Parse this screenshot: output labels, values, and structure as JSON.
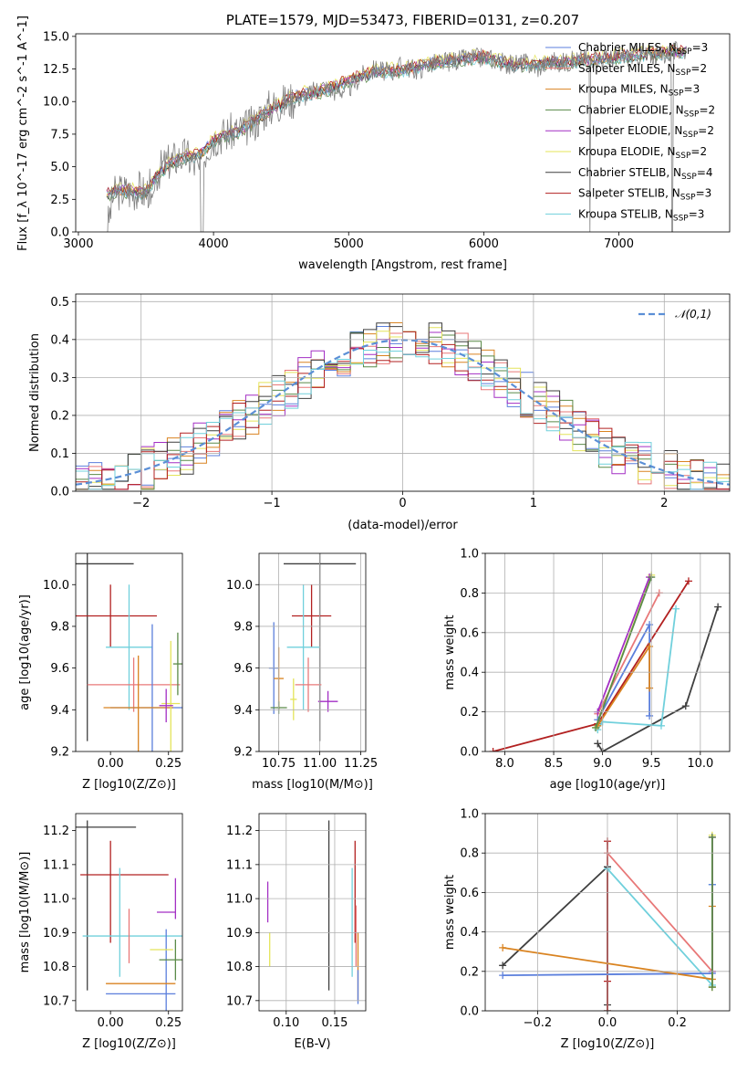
{
  "chart_data": [
    {
      "id": "spectrum",
      "type": "line",
      "title": "PLATE=1579, MJD=53473, FIBERID=0131, z=0.207",
      "xlabel": "wavelength [Angstrom, rest frame]",
      "ylabel": "Flux [f_λ 10^-17 erg cm^-2 s^-1 A^-1]",
      "xlim": [
        2980,
        7820
      ],
      "ylim": [
        0,
        15.2
      ],
      "xticks": [
        3000,
        4000,
        5000,
        6000,
        7000
      ],
      "yticks": [
        0.0,
        2.5,
        5.0,
        7.5,
        10.0,
        12.5,
        15.0
      ],
      "legend_position": "top-right",
      "grid": false,
      "observed_spectrum": {
        "color": "#808080",
        "x": [
          3210,
          3260,
          3300,
          3350,
          3400,
          3450,
          3500,
          3560,
          3620,
          3700,
          3800,
          3900,
          3950,
          4000,
          4100,
          4200,
          4300,
          4400,
          4500,
          4600,
          4700,
          4800,
          4900,
          5000,
          5100,
          5200,
          5300,
          5400,
          5500,
          5600,
          5700,
          5800,
          5900,
          6000,
          6100,
          6200,
          6300,
          6400,
          6500,
          6600,
          6700,
          6800,
          6900,
          7000,
          7100,
          7200,
          7300,
          7400,
          7500
        ],
        "y": [
          0.0,
          2.9,
          3.1,
          3.2,
          3.0,
          3.3,
          2.9,
          4.2,
          5.0,
          5.6,
          5.9,
          4.6,
          6.5,
          7.2,
          7.6,
          7.8,
          8.3,
          9.5,
          9.9,
          10.2,
          10.5,
          11.2,
          10.8,
          11.0,
          12.0,
          12.5,
          12.2,
          12.8,
          12.4,
          12.9,
          13.0,
          13.2,
          13.3,
          13.4,
          13.2,
          12.8,
          13.0,
          12.6,
          13.1,
          13.0,
          13.2,
          13.4,
          13.3,
          13.4,
          13.5,
          13.6,
          13.5,
          13.8,
          14.0
        ]
      },
      "series": [
        {
          "name": "Chabrier MILES, N_SSP=3",
          "color": "#5b7fdc",
          "offset": 0.1
        },
        {
          "name": "Salpeter MILES, N_SSP=2",
          "color": "#e87878",
          "offset": -0.1
        },
        {
          "name": "Kroupa MILES, N_SSP=3",
          "color": "#d98320",
          "offset": 0.0
        },
        {
          "name": "Chabrier ELODIE, N_SSP=2",
          "color": "#5a8a48",
          "offset": -0.2
        },
        {
          "name": "Salpeter ELODIE, N_SSP=2",
          "color": "#a32fc4",
          "offset": 0.05
        },
        {
          "name": "Kroupa ELODIE, N_SSP=2",
          "color": "#e4e45a",
          "offset": 0.3
        },
        {
          "name": "Chabrier STELIB, N_SSP=4",
          "color": "#3f3f3f",
          "offset": -0.05
        },
        {
          "name": "Salpeter STELIB, N_SSP=3",
          "color": "#b22020",
          "offset": 0.15
        },
        {
          "name": "Kroupa STELIB, N_SSP=3",
          "color": "#70d0dc",
          "offset": -0.15
        }
      ],
      "model_continuum": {
        "x": [
          3200,
          3300,
          3400,
          3500,
          3600,
          3700,
          3800,
          3900,
          4000,
          4200,
          4400,
          4600,
          4800,
          5000,
          5200,
          5400,
          5600,
          5800,
          6000,
          6200,
          6400,
          6600,
          6800,
          7000,
          7200,
          7400
        ],
        "y": [
          2.9,
          3.2,
          3.1,
          3.0,
          4.6,
          5.4,
          5.8,
          5.9,
          7.0,
          7.8,
          9.2,
          10.4,
          10.8,
          11.6,
          12.3,
          12.4,
          12.9,
          13.2,
          13.4,
          12.8,
          12.9,
          13.0,
          13.2,
          13.4,
          13.6,
          13.8
        ]
      }
    },
    {
      "id": "residuals",
      "type": "histogram",
      "xlabel": "(data-model)/error",
      "ylabel": "Normed distribution",
      "xlim": [
        -2.5,
        2.5
      ],
      "ylim": [
        0,
        0.52
      ],
      "xticks": [
        -2,
        -1,
        0,
        1,
        2
      ],
      "yticks": [
        0.0,
        0.1,
        0.2,
        0.3,
        0.4,
        0.5
      ],
      "xticklabels": [
        "−2",
        "−1",
        "0",
        "1",
        "2"
      ],
      "grid": true,
      "legend_label": "𝒩(0,1)",
      "legend_position": "top-right",
      "bin_width": 0.1
    },
    {
      "id": "age-vs-Z",
      "type": "errorbar",
      "xlabel": "Z [log10(Z/Z⊙)]",
      "ylabel": "age [log10(age/yr)]",
      "xlim": [
        -0.15,
        0.31
      ],
      "ylim": [
        9.2,
        10.15
      ],
      "xticks": [
        0.0,
        0.25
      ],
      "yticks": [
        9.2,
        9.4,
        9.6,
        9.8,
        10.0
      ],
      "grid": false,
      "points": [
        {
          "color": "#3f3f3f",
          "x": -0.1,
          "xerr": 0.2,
          "y": 10.1,
          "yerr": 0.85
        },
        {
          "color": "#b22020",
          "x": 0.0,
          "xerr": 0.2,
          "y": 9.85,
          "yerr": 0.15
        },
        {
          "color": "#70d0dc",
          "x": 0.08,
          "xerr": 0.1,
          "y": 9.7,
          "yerr": 0.3
        },
        {
          "color": "#e87878",
          "x": 0.1,
          "xerr": 0.2,
          "y": 9.52,
          "yerr": 0.13
        },
        {
          "color": "#5b7fdc",
          "x": 0.18,
          "xerr": 0.18,
          "y": 9.41,
          "yerr": 0.4
        },
        {
          "color": "#d98320",
          "x": 0.12,
          "xerr": 0.15,
          "y": 9.41,
          "yerr": 0.25
        },
        {
          "color": "#e4e45a",
          "x": 0.26,
          "xerr": 0.04,
          "y": 9.43,
          "yerr": 0.3
        },
        {
          "color": "#a32fc4",
          "x": 0.24,
          "xerr": 0.03,
          "y": 9.42,
          "yerr": 0.08
        },
        {
          "color": "#5a8a48",
          "x": 0.29,
          "xerr": 0.02,
          "y": 9.62,
          "yerr": 0.15
        }
      ]
    },
    {
      "id": "age-vs-mass",
      "type": "errorbar",
      "xlabel": "mass [log10(M/M⊙)]",
      "xlim": [
        10.63,
        11.28
      ],
      "ylim": [
        9.2,
        10.15
      ],
      "xticks": [
        10.75,
        11.0,
        11.25
      ],
      "yticks": [
        9.2,
        9.4,
        9.6,
        9.8,
        10.0
      ],
      "grid": true,
      "points": [
        {
          "color": "#3f3f3f",
          "x": 11.0,
          "xerr": 0.22,
          "y": 10.1,
          "yerr": 0.85
        },
        {
          "color": "#b22020",
          "x": 10.95,
          "xerr": 0.12,
          "y": 9.85,
          "yerr": 0.15
        },
        {
          "color": "#70d0dc",
          "x": 10.9,
          "xerr": 0.1,
          "y": 9.7,
          "yerr": 0.3
        },
        {
          "color": "#5b7fdc",
          "x": 10.72,
          "xerr": 0.03,
          "y": 9.6,
          "yerr": 0.22
        },
        {
          "color": "#d98320",
          "x": 10.75,
          "xerr": 0.03,
          "y": 9.55,
          "yerr": 0.15
        },
        {
          "color": "#e87878",
          "x": 10.93,
          "xerr": 0.08,
          "y": 9.52,
          "yerr": 0.13
        },
        {
          "color": "#a32fc4",
          "x": 11.05,
          "xerr": 0.06,
          "y": 9.44,
          "yerr": 0.05
        },
        {
          "color": "#e4e45a",
          "x": 10.84,
          "xerr": 0.02,
          "y": 9.45,
          "yerr": 0.1
        },
        {
          "color": "#5a8a48",
          "x": 10.75,
          "xerr": 0.05,
          "y": 9.41,
          "yerr": 0.03
        }
      ]
    },
    {
      "id": "massweight-vs-age",
      "type": "line",
      "xlabel": "age [log10(age/yr)]",
      "ylabel": "mass weight",
      "xlim": [
        7.8,
        10.3
      ],
      "ylim": [
        0.0,
        1.0
      ],
      "xticks": [
        8.0,
        8.5,
        9.0,
        9.5,
        10.0
      ],
      "yticks": [
        0.0,
        0.2,
        0.4,
        0.6,
        0.8,
        1.0
      ],
      "grid": true,
      "series": [
        {
          "color": "#3f3f3f",
          "x": [
            8.95,
            9.0,
            9.85,
            10.18
          ],
          "y": [
            0.04,
            0.0,
            0.23,
            0.73
          ]
        },
        {
          "color": "#b22020",
          "x": [
            7.88,
            8.95,
            9.88
          ],
          "y": [
            0.0,
            0.14,
            0.86
          ]
        },
        {
          "color": "#70d0dc",
          "x": [
            8.95,
            9.0,
            9.6,
            9.75
          ],
          "y": [
            0.11,
            0.15,
            0.13,
            0.72
          ]
        },
        {
          "color": "#e87878",
          "x": [
            8.95,
            9.58
          ],
          "y": [
            0.19,
            0.8
          ]
        },
        {
          "color": "#5b7fdc",
          "x": [
            8.95,
            9.48,
            9.48
          ],
          "y": [
            0.16,
            0.64,
            0.18
          ]
        },
        {
          "color": "#d98320",
          "x": [
            8.95,
            9.48,
            9.48
          ],
          "y": [
            0.13,
            0.53,
            0.32
          ]
        },
        {
          "color": "#e4e45a",
          "x": [
            8.93,
            9.5
          ],
          "y": [
            0.12,
            0.89
          ]
        },
        {
          "color": "#a32fc4",
          "x": [
            8.95,
            9.48
          ],
          "y": [
            0.2,
            0.88
          ]
        },
        {
          "color": "#5a8a48",
          "x": [
            8.93,
            9.5
          ],
          "y": [
            0.12,
            0.88
          ]
        }
      ]
    },
    {
      "id": "mass-vs-Z",
      "type": "errorbar",
      "xlabel": "Z [log10(Z/Z⊙)]",
      "ylabel": "mass [log10(M/M⊙)]",
      "xlim": [
        -0.15,
        0.31
      ],
      "ylim": [
        10.67,
        11.25
      ],
      "xticks": [
        0.0,
        0.25
      ],
      "yticks": [
        10.7,
        10.8,
        10.9,
        11.0,
        11.1,
        11.2
      ],
      "grid": false,
      "points": [
        {
          "color": "#3f3f3f",
          "x": -0.05,
          "xerr": 0.16,
          "y": 11.21,
          "yerr": 0.0
        },
        {
          "color": "#3f3f3f",
          "x": -0.1,
          "xerr": 0.0,
          "y": 10.98,
          "yerr": 0.25
        },
        {
          "color": "#b22020",
          "x": 0.0,
          "xerr": 0.0,
          "y": 11.02,
          "yerr": 0.15
        },
        {
          "color": "#b22020",
          "x": 0.06,
          "xerr": 0.19,
          "y": 11.07,
          "yerr": 0.0
        },
        {
          "color": "#70d0dc",
          "x": 0.1,
          "xerr": 0.22,
          "y": 10.89,
          "yerr": 0.0
        },
        {
          "color": "#70d0dc",
          "x": 0.04,
          "xerr": 0.0,
          "y": 10.93,
          "yerr": 0.16
        },
        {
          "color": "#e87878",
          "x": 0.08,
          "xerr": 0.0,
          "y": 10.89,
          "yerr": 0.08
        },
        {
          "color": "#5b7fdc",
          "x": 0.13,
          "xerr": 0.15,
          "y": 10.72,
          "yerr": 0.0
        },
        {
          "color": "#5b7fdc",
          "x": 0.24,
          "xerr": 0.0,
          "y": 10.78,
          "yerr": 0.13
        },
        {
          "color": "#d98320",
          "x": 0.13,
          "xerr": 0.15,
          "y": 10.75,
          "yerr": 0.0
        },
        {
          "color": "#e4e45a",
          "x": 0.22,
          "xerr": 0.05,
          "y": 10.85,
          "yerr": 0.0
        },
        {
          "color": "#a32fc4",
          "x": 0.24,
          "xerr": 0.04,
          "y": 10.96,
          "yerr": 0.0
        },
        {
          "color": "#a32fc4",
          "x": 0.28,
          "xerr": 0.0,
          "y": 11.0,
          "yerr": 0.06
        },
        {
          "color": "#5a8a48",
          "x": 0.28,
          "xerr": 0.0,
          "y": 10.82,
          "yerr": 0.06
        },
        {
          "color": "#5a8a48",
          "x": 0.26,
          "xerr": 0.05,
          "y": 10.82,
          "yerr": 0.0
        }
      ]
    },
    {
      "id": "mass-vs-EBV",
      "type": "errorbar",
      "xlabel": "E(B-V)",
      "xlim": [
        0.072,
        0.182
      ],
      "ylim": [
        10.67,
        11.25
      ],
      "xticks": [
        0.1,
        0.15
      ],
      "yticks": [
        10.7,
        10.8,
        10.9,
        11.0,
        11.1,
        11.2
      ],
      "grid": true,
      "points": [
        {
          "color": "#a32fc4",
          "x": 0.081,
          "xerr": 0,
          "y": 10.99,
          "yerr": 0.06
        },
        {
          "color": "#e4e45a",
          "x": 0.083,
          "xerr": 0,
          "y": 10.85,
          "yerr": 0.05
        },
        {
          "color": "#3f3f3f",
          "x": 0.144,
          "xerr": 0,
          "y": 10.98,
          "yerr": 0.25
        },
        {
          "color": "#70d0dc",
          "x": 0.168,
          "xerr": 0,
          "y": 10.93,
          "yerr": 0.16
        },
        {
          "color": "#b22020",
          "x": 0.171,
          "xerr": 0,
          "y": 11.02,
          "yerr": 0.15
        },
        {
          "color": "#e87878",
          "x": 0.172,
          "xerr": 0,
          "y": 10.89,
          "yerr": 0.09
        },
        {
          "color": "#d98320",
          "x": 0.174,
          "xerr": 0,
          "y": 10.8,
          "yerr": 0.1
        },
        {
          "color": "#5b7fdc",
          "x": 0.174,
          "xerr": 0,
          "y": 10.74,
          "yerr": 0.05
        }
      ]
    },
    {
      "id": "massweight-vs-Z",
      "type": "line",
      "xlabel": "Z [log10(Z/Z⊙)]",
      "ylabel": "mass weight",
      "xlim": [
        -0.35,
        0.35
      ],
      "ylim": [
        0.0,
        1.0
      ],
      "xticks": [
        -0.2,
        0.0,
        0.2
      ],
      "xticklabels": [
        "−0.2",
        "0.0",
        "0.2"
      ],
      "yticks": [
        0.0,
        0.2,
        0.4,
        0.6,
        0.8,
        1.0
      ],
      "grid": true,
      "series": [
        {
          "color": "#3f3f3f",
          "x": [
            -0.3,
            0.0,
            0.0,
            0.0
          ],
          "y": [
            0.23,
            0.73,
            0.03,
            0.0
          ]
        },
        {
          "color": "#b22020",
          "x": [
            0.0,
            0.0,
            0.0
          ],
          "y": [
            0.86,
            0.15,
            0.0
          ]
        },
        {
          "color": "#70d0dc",
          "x": [
            0.0,
            0.0,
            0.3,
            0.3
          ],
          "y": [
            0.72,
            0.72,
            0.13,
            0.64
          ]
        },
        {
          "color": "#e87878",
          "x": [
            0.0,
            0.3,
            0.3
          ],
          "y": [
            0.8,
            0.2,
            0.12
          ]
        },
        {
          "color": "#5b7fdc",
          "x": [
            -0.3,
            0.3,
            0.3
          ],
          "y": [
            0.18,
            0.19,
            0.64
          ]
        },
        {
          "color": "#d98320",
          "x": [
            -0.3,
            0.3,
            0.3
          ],
          "y": [
            0.32,
            0.16,
            0.53
          ]
        },
        {
          "color": "#e4e45a",
          "x": [
            0.3,
            0.3
          ],
          "y": [
            0.12,
            0.89
          ]
        },
        {
          "color": "#a32fc4",
          "x": [
            0.3,
            0.3
          ],
          "y": [
            0.2,
            0.88
          ]
        },
        {
          "color": "#5a8a48",
          "x": [
            0.3,
            0.3
          ],
          "y": [
            0.12,
            0.88
          ]
        }
      ]
    }
  ]
}
